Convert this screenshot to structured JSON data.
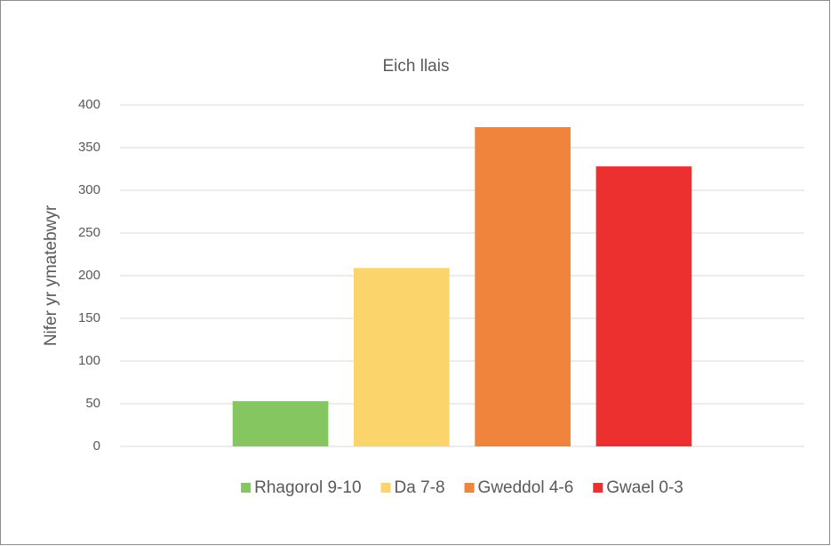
{
  "chart_data": {
    "type": "bar",
    "title": "Eich llais",
    "y_label": "Nifer yr ymatebwyr",
    "categories": [
      null
    ],
    "series": [
      {
        "name": "Rhagorol 9-10",
        "color": "#86c661",
        "values": [
          53
        ]
      },
      {
        "name": "Da 7-8",
        "color": "#fcd46c",
        "values": [
          209
        ]
      },
      {
        "name": "Gweddol 4-6",
        "color": "#f0843c",
        "values": [
          374
        ]
      },
      {
        "name": "Gwael 0-3",
        "color": "#ec2f2f",
        "values": [
          328
        ]
      }
    ],
    "ylim": [
      0,
      400
    ],
    "yticks": [
      0,
      50,
      100,
      150,
      200,
      250,
      300,
      350,
      400
    ],
    "grid": true,
    "legend": "bottom"
  }
}
